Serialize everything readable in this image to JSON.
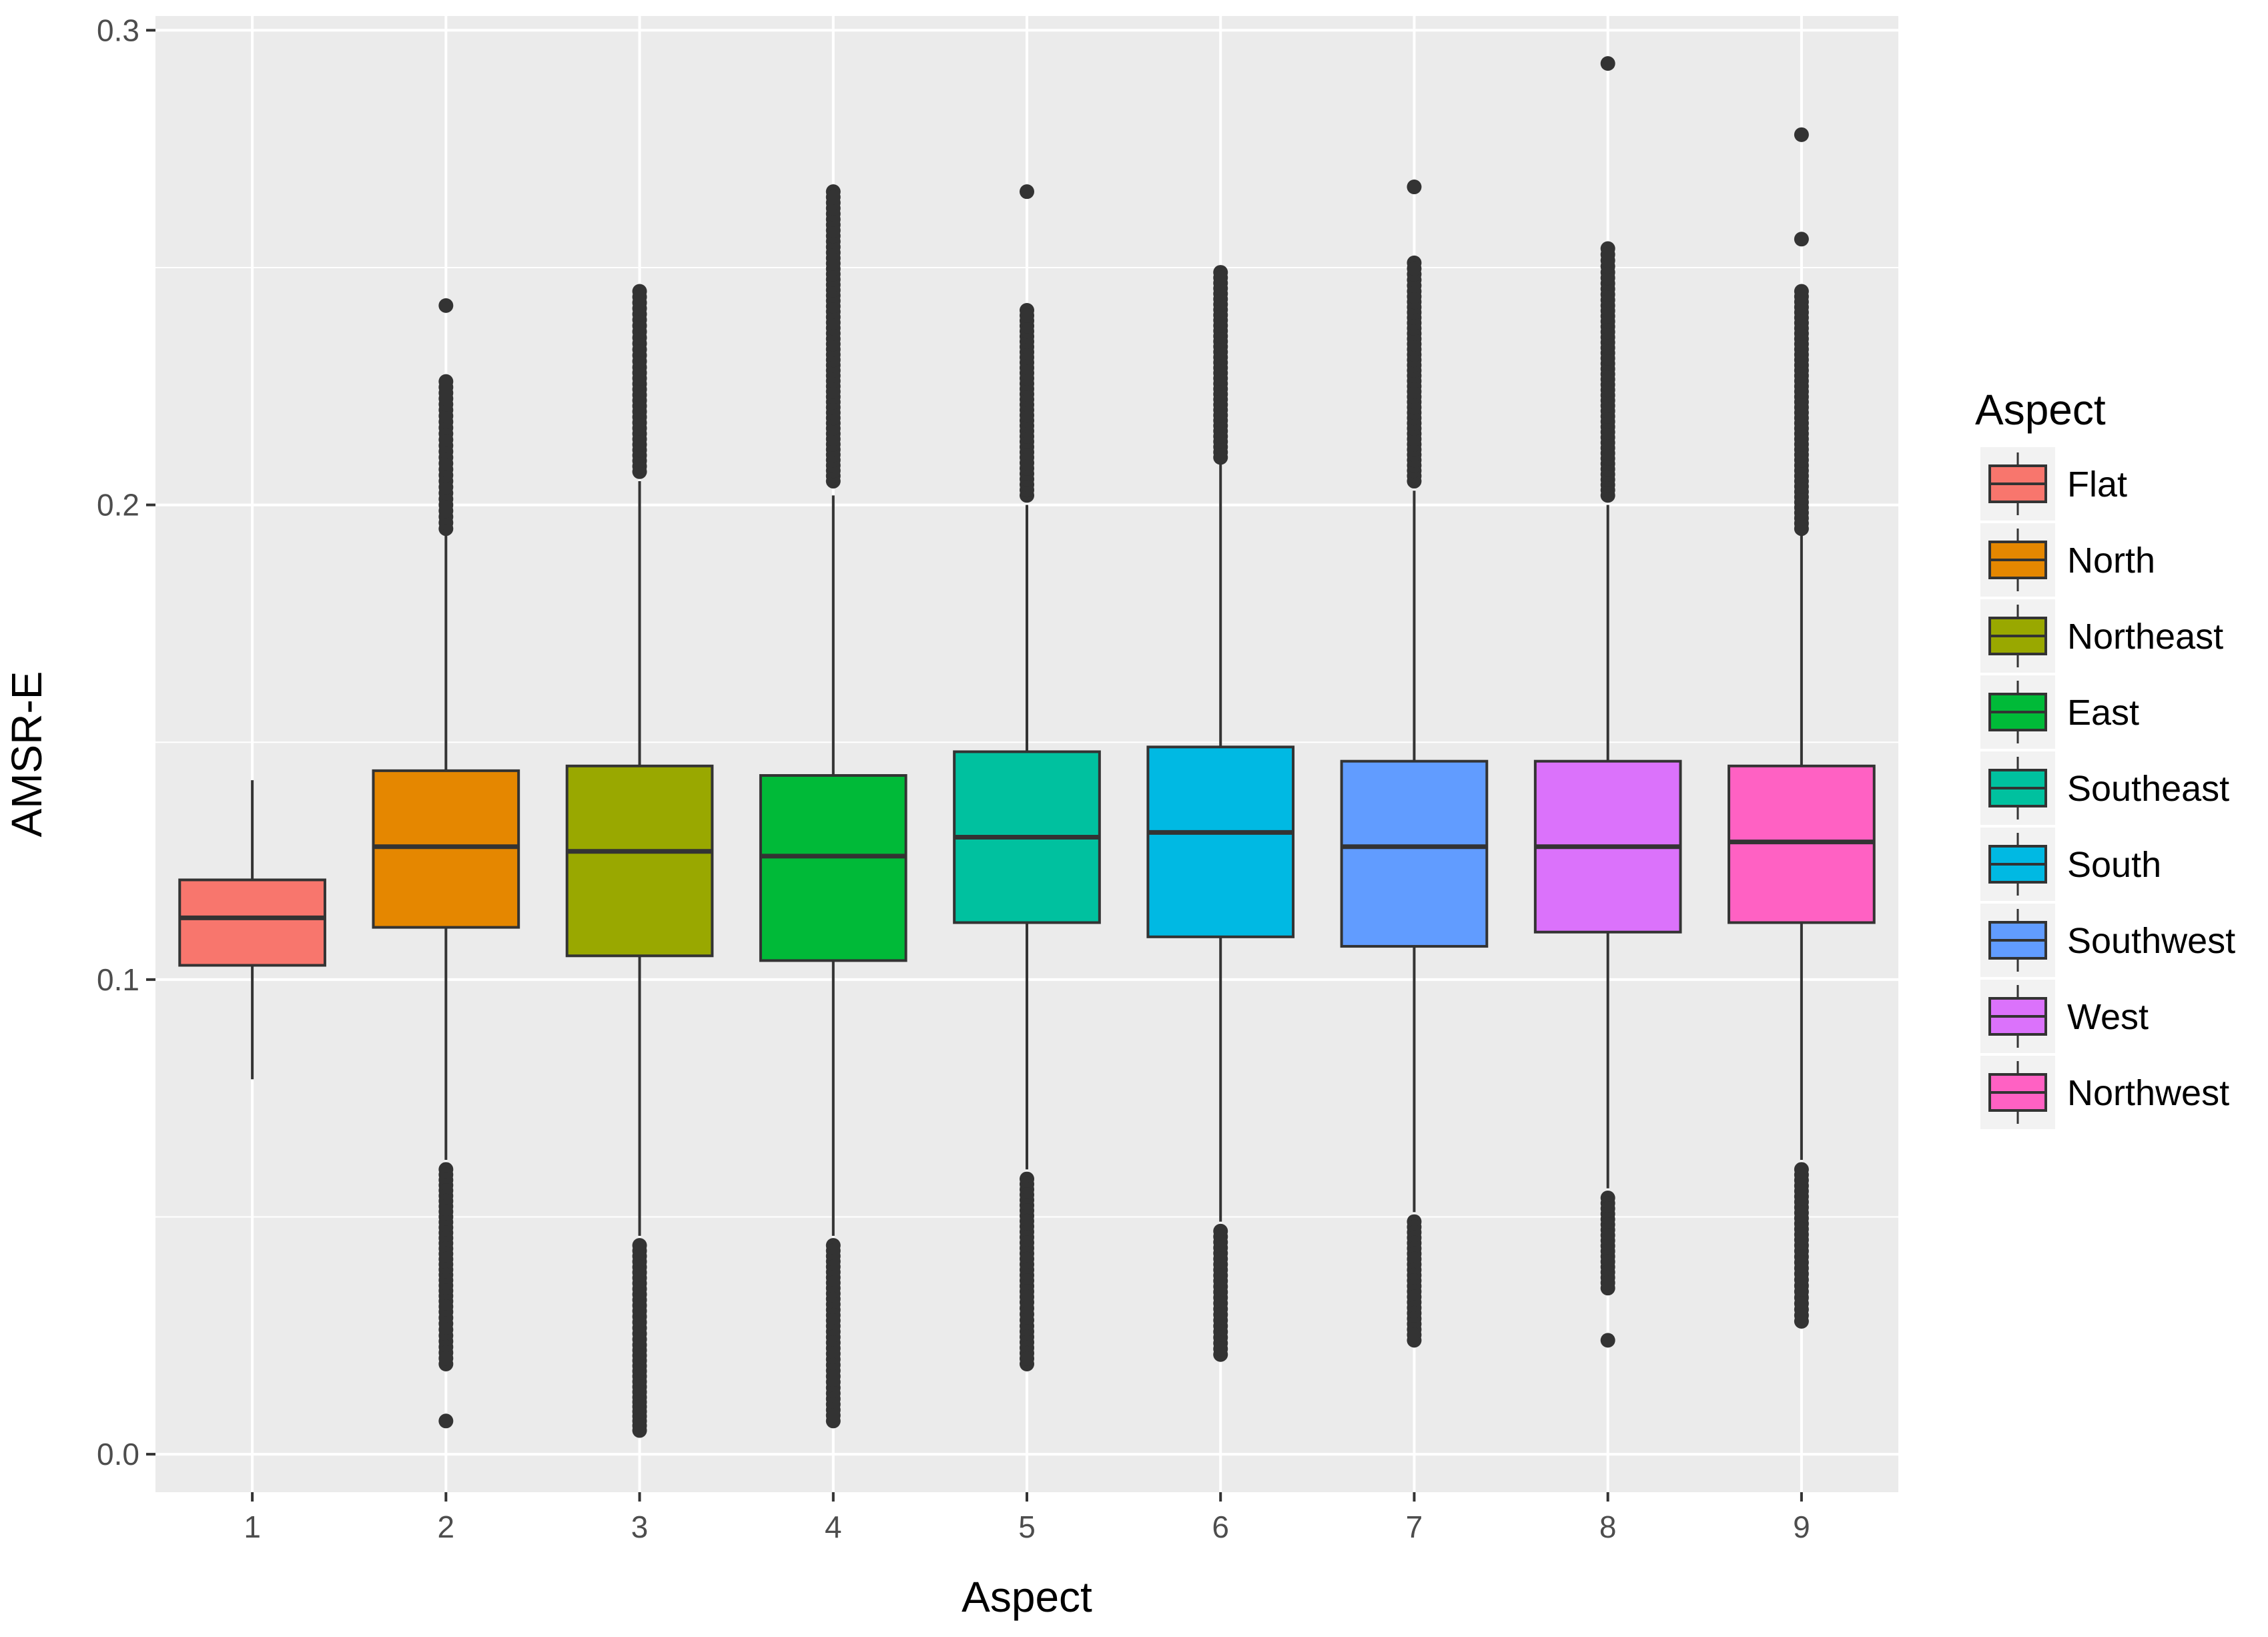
{
  "chart_data": {
    "type": "boxplot",
    "title": "",
    "xlabel": "Aspect",
    "ylabel": "AMSR-E",
    "ylim": [
      -0.008,
      0.303
    ],
    "y_ticks": [
      "0.0",
      "0.1",
      "0.2",
      "0.3"
    ],
    "y_tick_values": [
      0.0,
      0.1,
      0.2,
      0.3
    ],
    "grid": true,
    "legend_title": "Aspect",
    "legend_position": "right",
    "categories": [
      "1",
      "2",
      "3",
      "4",
      "5",
      "6",
      "7",
      "8",
      "9"
    ],
    "series": [
      {
        "name": "Flat",
        "color": "#F8766D",
        "min": 0.079,
        "q1": 0.103,
        "median": 0.113,
        "q3": 0.121,
        "max": 0.142,
        "outliers_high": [],
        "outliers_low": []
      },
      {
        "name": "North",
        "color": "#E58700",
        "min": 0.062,
        "q1": 0.111,
        "median": 0.128,
        "q3": 0.144,
        "max": 0.194,
        "outliers_high": [
          0.195,
          0.2,
          0.205,
          0.21,
          0.215,
          0.22,
          0.226,
          0.242
        ],
        "outliers_low": [
          0.06,
          0.05,
          0.04,
          0.03,
          0.025,
          0.019,
          0.007
        ]
      },
      {
        "name": "Northeast",
        "color": "#99A800",
        "min": 0.046,
        "q1": 0.105,
        "median": 0.127,
        "q3": 0.145,
        "max": 0.205,
        "outliers_high": [
          0.207,
          0.215,
          0.222,
          0.229,
          0.234,
          0.239,
          0.245
        ],
        "outliers_low": [
          0.044,
          0.036,
          0.029,
          0.023,
          0.012,
          0.009,
          0.005
        ]
      },
      {
        "name": "East",
        "color": "#00BA38",
        "min": 0.046,
        "q1": 0.104,
        "median": 0.126,
        "q3": 0.143,
        "max": 0.202,
        "outliers_high": [
          0.205,
          0.215,
          0.225,
          0.235,
          0.243,
          0.252,
          0.259,
          0.266
        ],
        "outliers_low": [
          0.044,
          0.035,
          0.027,
          0.02,
          0.014,
          0.007
        ]
      },
      {
        "name": "Southeast",
        "color": "#00C19F",
        "min": 0.06,
        "q1": 0.112,
        "median": 0.13,
        "q3": 0.148,
        "max": 0.2,
        "outliers_high": [
          0.202,
          0.21,
          0.22,
          0.23,
          0.241,
          0.266
        ],
        "outliers_low": [
          0.058,
          0.048,
          0.04,
          0.032,
          0.027,
          0.019
        ]
      },
      {
        "name": "South",
        "color": "#00B9E3",
        "min": 0.049,
        "q1": 0.109,
        "median": 0.131,
        "q3": 0.149,
        "max": 0.209,
        "outliers_high": [
          0.21,
          0.22,
          0.23,
          0.24,
          0.249
        ],
        "outliers_low": [
          0.047,
          0.04,
          0.033,
          0.027,
          0.021
        ]
      },
      {
        "name": "Southwest",
        "color": "#619CFF",
        "min": 0.051,
        "q1": 0.107,
        "median": 0.128,
        "q3": 0.146,
        "max": 0.203,
        "outliers_high": [
          0.205,
          0.215,
          0.225,
          0.235,
          0.245,
          0.251,
          0.267
        ],
        "outliers_low": [
          0.049,
          0.04,
          0.032,
          0.024
        ]
      },
      {
        "name": "West",
        "color": "#DB72FB",
        "min": 0.056,
        "q1": 0.11,
        "median": 0.128,
        "q3": 0.146,
        "max": 0.2,
        "outliers_high": [
          0.202,
          0.212,
          0.222,
          0.232,
          0.242,
          0.249,
          0.254,
          0.293
        ],
        "outliers_low": [
          0.054,
          0.045,
          0.035,
          0.024
        ]
      },
      {
        "name": "Northwest",
        "color": "#FF61C3",
        "min": 0.062,
        "q1": 0.112,
        "median": 0.129,
        "q3": 0.145,
        "max": 0.194,
        "outliers_high": [
          0.195,
          0.205,
          0.215,
          0.225,
          0.235,
          0.245,
          0.256,
          0.278
        ],
        "outliers_low": [
          0.06,
          0.052,
          0.044,
          0.038,
          0.033,
          0.028
        ]
      }
    ]
  }
}
